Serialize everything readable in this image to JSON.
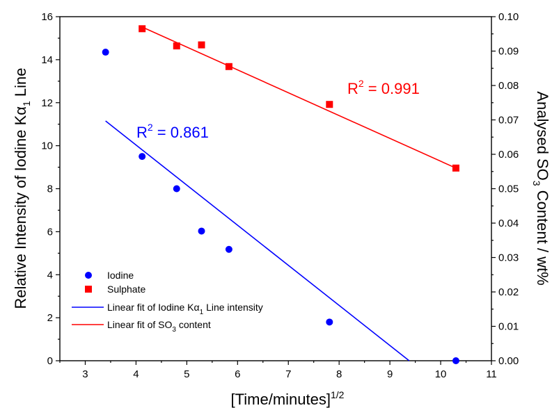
{
  "chart_data": {
    "type": "scatter",
    "x_axis": {
      "label": "[Time/minutes]",
      "label_sup": "1/2",
      "range": [
        2.5,
        11
      ],
      "ticks": [
        3,
        4,
        5,
        6,
        7,
        8,
        9,
        10,
        11
      ]
    },
    "y_left": {
      "label_pre": "Relative Intensity of Iodine K",
      "label_greek": "α",
      "label_sub": "1",
      "label_post": " Line",
      "range": [
        0,
        16
      ],
      "ticks": [
        0,
        2,
        4,
        6,
        8,
        10,
        12,
        14,
        16
      ]
    },
    "y_right": {
      "label_pre": "Analysed SO",
      "label_sub": "3",
      "label_post": " Content / wt%",
      "range": [
        0,
        0.1
      ],
      "ticks": [
        "0.00",
        "0.01",
        "0.02",
        "0.03",
        "0.04",
        "0.05",
        "0.06",
        "0.07",
        "0.08",
        "0.09",
        "0.10"
      ]
    },
    "series": [
      {
        "name": "Iodine",
        "axis": "left",
        "marker": "circle",
        "color": "#0000ff",
        "points": [
          [
            3.4,
            14.35
          ],
          [
            4.12,
            9.5
          ],
          [
            4.8,
            8.0
          ],
          [
            5.29,
            6.03
          ],
          [
            5.83,
            5.18
          ],
          [
            7.81,
            1.8
          ],
          [
            10.3,
            0.0
          ]
        ]
      },
      {
        "name": "Sulphate",
        "axis": "right",
        "marker": "square",
        "color": "#ff0000",
        "points": [
          [
            4.12,
            0.0965
          ],
          [
            4.8,
            0.0915
          ],
          [
            5.29,
            0.0918
          ],
          [
            5.83,
            0.0855
          ],
          [
            7.81,
            0.0745
          ],
          [
            10.3,
            0.056
          ]
        ]
      }
    ],
    "fits": [
      {
        "name_pre": "Linear fit of Iodine K",
        "name_greek": "α",
        "name_sub": "1",
        "name_post": " Line intensity",
        "axis": "left",
        "color": "#0000ff",
        "x": [
          3.4,
          9.38
        ],
        "y": [
          11.15,
          0.0
        ],
        "r2_label": "R",
        "r2_sup": "2",
        "r2_value": " = 0.861"
      },
      {
        "name_pre": "Linear fit of SO",
        "name_sub": "3",
        "name_post": " content",
        "axis": "right",
        "color": "#ff0000",
        "x": [
          4.12,
          10.3
        ],
        "y": [
          0.097,
          0.056
        ],
        "r2_label": "R",
        "r2_sup": "2",
        "r2_value": " = 0.991"
      }
    ],
    "legend_position": "bottom-left",
    "grid": false
  }
}
